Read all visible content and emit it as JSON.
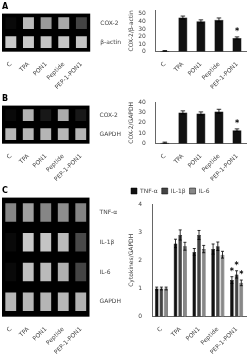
{
  "chart_data": [
    {
      "type": "heatmap",
      "title": "A",
      "categories": [
        "C",
        "TPA",
        "PON1",
        "Peptide",
        "PEP-1-PON1"
      ],
      "rows": [
        "COX-2",
        "β-actin"
      ],
      "values": [
        [
          0.04,
          0.76,
          0.63,
          0.69,
          0.28
        ],
        [
          0.82,
          0.82,
          0.8,
          0.81,
          0.8
        ]
      ]
    },
    {
      "type": "bar",
      "ylabel": "COX-2/β-actin",
      "categories": [
        "C",
        "TPA",
        "PON1",
        "Peptide",
        "PEP-1-PON1"
      ],
      "values": [
        1,
        45,
        40,
        42,
        18
      ],
      "errors": [
        0.5,
        2.0,
        2.0,
        2.5,
        1.5
      ],
      "color": "#111111",
      "ylim": [
        0,
        55
      ],
      "yticks": [
        0,
        10,
        20,
        30,
        40,
        50
      ],
      "grid": false,
      "annotations": [
        {
          "category": "PEP-1-PON1",
          "text": "*"
        }
      ]
    },
    {
      "type": "heatmap",
      "title": "B",
      "categories": [
        "C",
        "TPA",
        "PON1",
        "Peptide",
        "PEP-1-PON1"
      ],
      "rows": [
        "COX-2",
        "GAPDH"
      ],
      "values": [
        [
          0.04,
          0.73,
          0.1,
          0.7,
          0.1
        ],
        [
          0.75,
          0.75,
          0.74,
          0.75,
          0.74
        ]
      ]
    },
    {
      "type": "bar",
      "ylabel": "COX-2/GAPDH",
      "categories": [
        "C",
        "TPA",
        "PON1",
        "Peptide",
        "PEP-1-PON1"
      ],
      "values": [
        1,
        30,
        29,
        31,
        13
      ],
      "errors": [
        0.5,
        1.5,
        1.5,
        2.0,
        1.2
      ],
      "color": "#111111",
      "ylim": [
        0,
        40
      ],
      "yticks": [
        0,
        10,
        20,
        30,
        40
      ],
      "grid": false,
      "annotations": [
        {
          "category": "PEP-1-PON1",
          "text": "*"
        }
      ]
    },
    {
      "type": "heatmap",
      "title": "C",
      "categories": [
        "C",
        "TPA",
        "PON1",
        "Peptide",
        "PEP-1-PON1"
      ],
      "rows": [
        "TNF-α",
        "IL-1β",
        "IL-6",
        "GAPDH"
      ],
      "values": [
        [
          0.55,
          0.65,
          0.55,
          0.58,
          0.54
        ],
        [
          0.04,
          0.82,
          0.8,
          0.76,
          0.3
        ],
        [
          0.04,
          0.78,
          0.76,
          0.72,
          0.28
        ],
        [
          0.75,
          0.75,
          0.74,
          0.75,
          0.73
        ]
      ]
    },
    {
      "type": "bar",
      "ylabel": "Cytokines/GAPDH",
      "categories": [
        "C",
        "TPA",
        "PON1",
        "Peptide",
        "PEP-1-PON1"
      ],
      "series": [
        {
          "name": "TNF-α",
          "color": "#111111",
          "values": [
            1.0,
            2.6,
            2.3,
            2.4,
            1.3
          ],
          "errors": [
            0.05,
            0.15,
            0.12,
            0.18,
            0.12
          ]
        },
        {
          "name": "IL-1β",
          "color": "#444444",
          "values": [
            1.0,
            2.9,
            2.9,
            2.5,
            1.5
          ],
          "errors": [
            0.05,
            0.18,
            0.16,
            0.15,
            0.13
          ]
        },
        {
          "name": "IL-6",
          "color": "#888888",
          "values": [
            1.0,
            2.5,
            2.4,
            2.2,
            1.2
          ],
          "errors": [
            0.05,
            0.14,
            0.13,
            0.12,
            0.1
          ]
        }
      ],
      "ylim": [
        0,
        4
      ],
      "yticks": [
        0,
        1,
        2,
        3,
        4
      ],
      "grid": false,
      "legend": "upper left",
      "annotations": [
        {
          "category": "PEP-1-PON1",
          "series": "TNF-α",
          "text": "*"
        },
        {
          "category": "PEP-1-PON1",
          "series": "IL-1β",
          "text": "*"
        },
        {
          "category": "PEP-1-PON1",
          "series": "IL-6",
          "text": "*"
        }
      ]
    }
  ]
}
